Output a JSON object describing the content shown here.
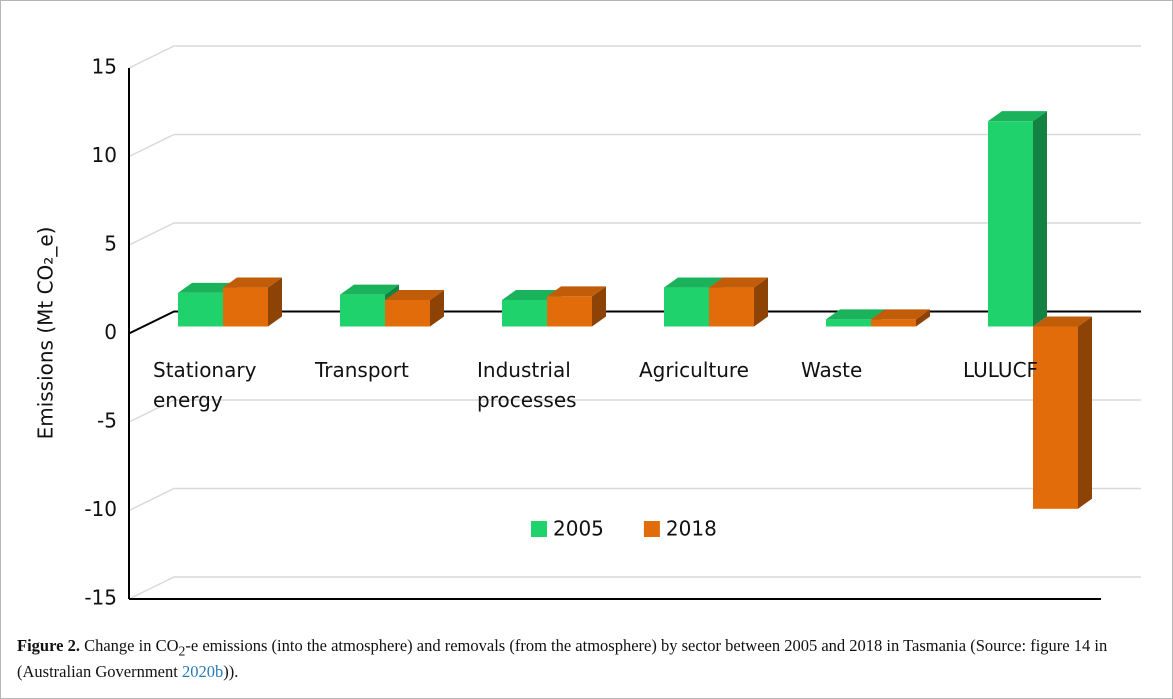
{
  "chart_data": {
    "type": "bar3d",
    "y_label": "Emissions (Mt CO₂_e)",
    "categories": [
      "Stationary energy",
      "Transport",
      "Industrial processes",
      "Agriculture",
      "Waste",
      "LULUCF"
    ],
    "series": [
      {
        "name": "2005",
        "color": "#1fd26b",
        "values": [
          1.9,
          1.8,
          1.5,
          2.2,
          0.4,
          11.6
        ]
      },
      {
        "name": "2018",
        "color": "#e36c0a",
        "values": [
          2.2,
          1.5,
          1.7,
          2.2,
          0.4,
          -10.3
        ]
      }
    ],
    "ylim": [
      -15,
      15
    ],
    "yticks": [
      -15,
      -10,
      -5,
      0,
      5,
      10,
      15
    ],
    "grid": true,
    "legend": "lower center"
  },
  "caption": {
    "label": "Figure 2.",
    "text_1": "Change in CO",
    "sub": "2",
    "text_2": "-e emissions (into the atmosphere) and removals (from the atmosphere) by sector between 2005 and 2018 in Tasmania (Source: figure 14 in (Australian Government ",
    "link": "2020b",
    "text_3": "))."
  }
}
